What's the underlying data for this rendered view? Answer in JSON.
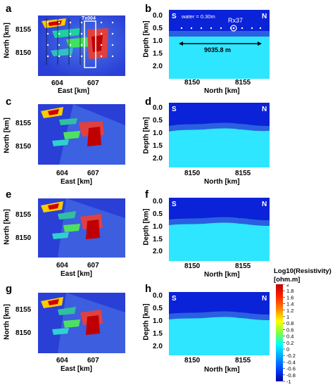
{
  "panels": {
    "a": {
      "letter": "a",
      "ylabel": "North [km]",
      "xlabel": "East [km]",
      "yticks": [
        "8155",
        "8150"
      ],
      "xticks": [
        "604",
        "607"
      ],
      "tx_label": "Tx004"
    },
    "b": {
      "letter": "b",
      "ylabel": "Depth [km]",
      "xlabel": "North [km]",
      "yticks": [
        "0.0",
        "0.5",
        "1.0",
        "1.5",
        "2.0"
      ],
      "xticks": [
        "8150",
        "8155"
      ],
      "south": "S",
      "north": "N",
      "water": "water = 0.30m",
      "rx_label": "Rx37",
      "distance": "9035.8 m"
    },
    "c": {
      "letter": "c",
      "ylabel": "North [km]",
      "xlabel": "East [km]",
      "yticks": [
        "8155",
        "8150"
      ],
      "xticks": [
        "604",
        "607"
      ]
    },
    "d": {
      "letter": "d",
      "ylabel": "Depth [km]",
      "xlabel": "North [km]",
      "yticks": [
        "0.0",
        "0.5",
        "1.0",
        "1.5",
        "2.0"
      ],
      "xticks": [
        "8150",
        "8155"
      ],
      "south": "S",
      "north": "N"
    },
    "e": {
      "letter": "e",
      "ylabel": "North [km]",
      "xlabel": "East [km]",
      "yticks": [
        "8155",
        "8150"
      ],
      "xticks": [
        "604",
        "607"
      ]
    },
    "f": {
      "letter": "f",
      "ylabel": "Depth [km]",
      "xlabel": "North [km]",
      "yticks": [
        "0.0",
        "0.5",
        "1.0",
        "1.5",
        "2.0"
      ],
      "xticks": [
        "8150",
        "8155"
      ],
      "south": "S",
      "north": "N"
    },
    "g": {
      "letter": "g",
      "ylabel": "North [km]",
      "xlabel": "East [km]",
      "yticks": [
        "8155",
        "8150"
      ],
      "xticks": [
        "604",
        "607"
      ]
    },
    "h": {
      "letter": "h",
      "ylabel": "Depth [km]",
      "xlabel": "North [km]",
      "yticks": [
        "0.0",
        "0.5",
        "1.0",
        "1.5",
        "2.0"
      ],
      "xticks": [
        "8150",
        "8155"
      ],
      "south": "S",
      "north": "N"
    }
  },
  "colorbar": {
    "title_line1": "Log10(Resistivity)",
    "title_line2": "[ohm.m]",
    "ticks": [
      "2",
      "1.8",
      "1.6",
      "1.4",
      "1.2",
      "1",
      "0.8",
      "0.6",
      "0.4",
      "0.2",
      "0",
      "-0.2",
      "-0.4",
      "-0.6",
      "-0.8",
      "-1"
    ],
    "colors": [
      "#c00000",
      "#ff2000",
      "#ff8000",
      "#ffff00",
      "#80ff40",
      "#00ffff",
      "#00a0ff",
      "#0040ff",
      "#0000a0"
    ]
  },
  "colors": {
    "background_blue": "#2a3fd6",
    "section_cyan": "#2ee6ff",
    "water_blue": "#0a22d8"
  }
}
